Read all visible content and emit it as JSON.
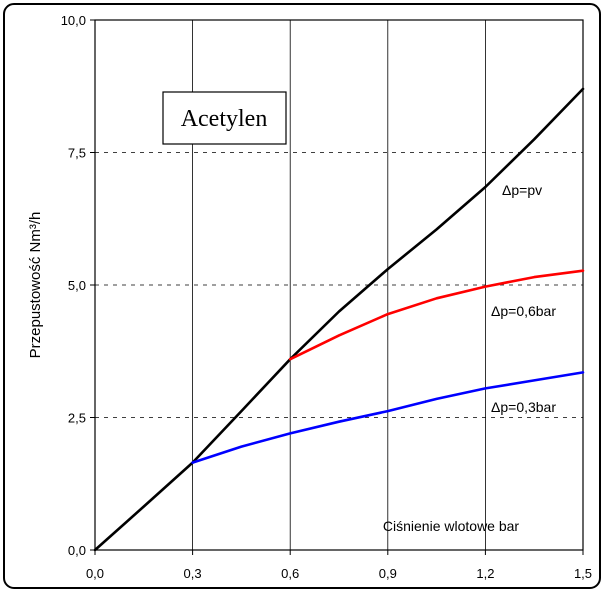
{
  "chart_data": {
    "type": "line",
    "title": "Acetylen",
    "xlabel": "Ciśnienie wlotowe bar",
    "ylabel": "Przepustowość Nm³/h",
    "xlim": [
      0,
      1.5
    ],
    "ylim": [
      0,
      10
    ],
    "x_ticks": [
      0,
      0.3,
      0.6,
      0.9,
      1.2,
      1.5
    ],
    "x_tick_labels": [
      "0,0",
      "0,3",
      "0,6",
      "0,9",
      "1,2",
      "1,5"
    ],
    "y_ticks": [
      0,
      2.5,
      5,
      7.5,
      10
    ],
    "y_tick_labels": [
      "0,0",
      "2,5",
      "5,0",
      "7,5",
      "10,0"
    ],
    "grid": {
      "x": "solid",
      "y": "dashed"
    },
    "series": [
      {
        "name": "Δp=pv",
        "color": "#000000",
        "x": [
          0.0,
          0.15,
          0.3,
          0.45,
          0.6,
          0.75,
          0.9,
          1.05,
          1.2,
          1.35,
          1.5
        ],
        "y": [
          0.0,
          0.82,
          1.65,
          2.62,
          3.6,
          4.5,
          5.3,
          6.05,
          6.85,
          7.75,
          8.7
        ]
      },
      {
        "name": "Δp=0,6bar",
        "color": "#ff0000",
        "x": [
          0.6,
          0.75,
          0.9,
          1.05,
          1.2,
          1.35,
          1.5
        ],
        "y": [
          3.6,
          4.05,
          4.45,
          4.75,
          4.97,
          5.15,
          5.27
        ]
      },
      {
        "name": "Δp=0,3bar",
        "color": "#0000ff",
        "x": [
          0.3,
          0.45,
          0.6,
          0.75,
          0.9,
          1.05,
          1.2,
          1.35,
          1.5
        ],
        "y": [
          1.65,
          1.95,
          2.2,
          2.42,
          2.62,
          2.85,
          3.05,
          3.2,
          3.35
        ]
      }
    ]
  }
}
